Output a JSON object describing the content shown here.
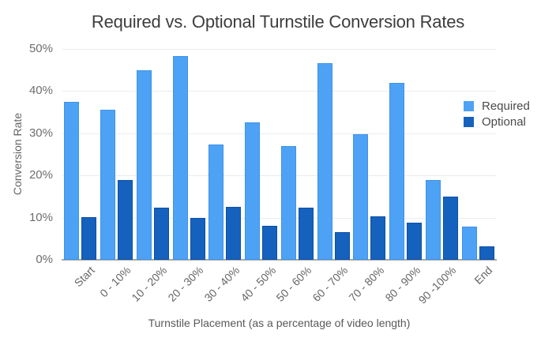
{
  "chart_data": {
    "type": "bar",
    "title": "Required vs. Optional Turnstile Conversion Rates",
    "xlabel": "Turnstile Placement (as a percentage of video length)",
    "ylabel": "Conversion Rate",
    "ylim": [
      0,
      50
    ],
    "yticks": [
      "0%",
      "10%",
      "20%",
      "30%",
      "40%",
      "50%"
    ],
    "grid": true,
    "legend_position": "right",
    "categories": [
      "Start",
      "0 - 10%",
      "10 - 20%",
      "20 - 30%",
      "30 - 40%",
      "40 - 50%",
      "50 - 60%",
      "60 - 70%",
      "70 - 80%",
      "80 - 90%",
      "90 -100%",
      "End"
    ],
    "series": [
      {
        "name": "Required",
        "color": "#4DA2F5",
        "border_color": "#3E92E8",
        "values": [
          37.5,
          35.6,
          45.0,
          48.3,
          27.4,
          32.6,
          26.9,
          46.7,
          29.8,
          42.0,
          19.0,
          7.8
        ]
      },
      {
        "name": "Optional",
        "color": "#1561BE",
        "border_color": "#0E4FA4",
        "values": [
          10.2,
          18.9,
          12.3,
          10.0,
          12.6,
          8.0,
          12.4,
          6.6,
          10.3,
          8.8,
          14.9,
          3.1
        ]
      }
    ]
  }
}
